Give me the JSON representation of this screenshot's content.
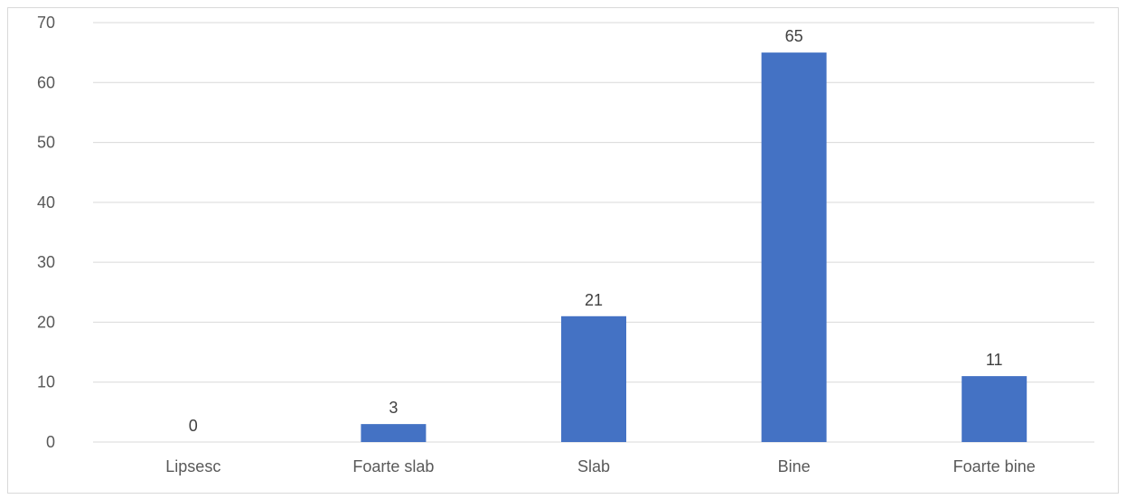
{
  "chart_data": {
    "type": "bar",
    "categories": [
      "Lipsesc",
      "Foarte slab",
      "Slab",
      "Bine",
      "Foarte bine"
    ],
    "values": [
      0,
      3,
      21,
      65,
      11
    ],
    "data_labels": [
      "0",
      "3",
      "21",
      "65",
      "11"
    ],
    "title": "",
    "xlabel": "",
    "ylabel": "",
    "ylim": [
      0,
      70
    ],
    "yticks": [
      0,
      10,
      20,
      30,
      40,
      50,
      60,
      70
    ],
    "grid": true,
    "legend": "none",
    "colors": {
      "bar": "#4472c4",
      "grid": "#d9d9d9",
      "axis": "#d9d9d9",
      "text": "#595959"
    }
  }
}
